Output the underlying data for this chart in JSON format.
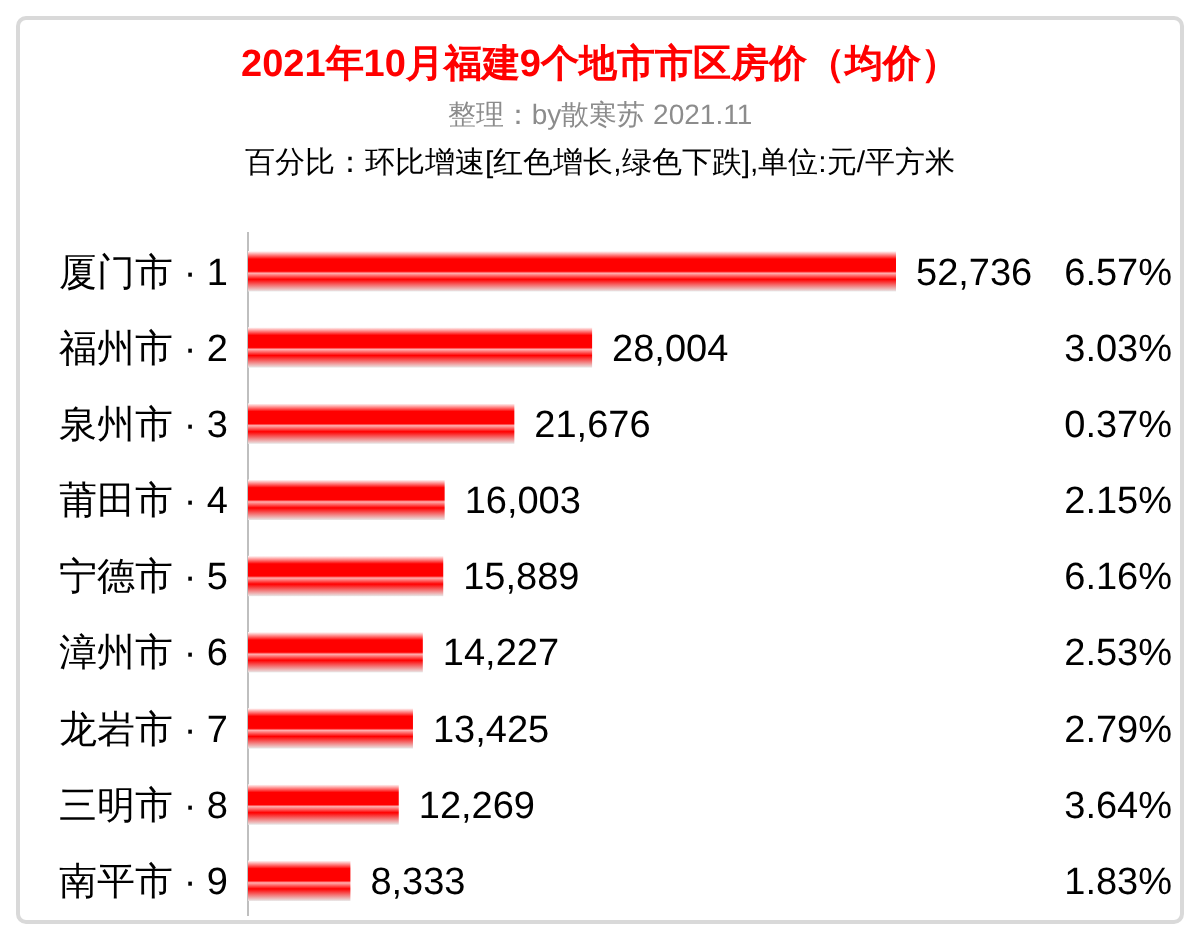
{
  "chart_data": {
    "type": "bar",
    "orientation": "horizontal",
    "title": "2021年10月福建9个地市市区房价（均价）",
    "subtitle": "整理：by散寒苏 2021.11",
    "annotations": [
      "百分比：环比增速[红色增长,绿色下跌],单位:元/平方米",
      "6.57%",
      "3.03%",
      "0.37%",
      "2.15%",
      "6.16%",
      "2.53%",
      "2.79%",
      "3.64%",
      "1.83%"
    ],
    "categories": [
      "厦门市 · 1",
      "福州市 · 2",
      "泉州市 · 3",
      "莆田市 · 4",
      "宁德市 · 5",
      "漳州市 · 6",
      "龙岩市 · 7",
      "三明市 · 8",
      "南平市 · 9"
    ],
    "values": [
      52736,
      28004,
      21676,
      16003,
      15889,
      14227,
      13425,
      12269,
      8333
    ],
    "value_labels": [
      "52,736",
      "28,004",
      "21,676",
      "16,003",
      "15,889",
      "14,227",
      "13,425",
      "12,269",
      "8,333"
    ],
    "color": "#ff0000",
    "tick_labels": "y"
  }
}
